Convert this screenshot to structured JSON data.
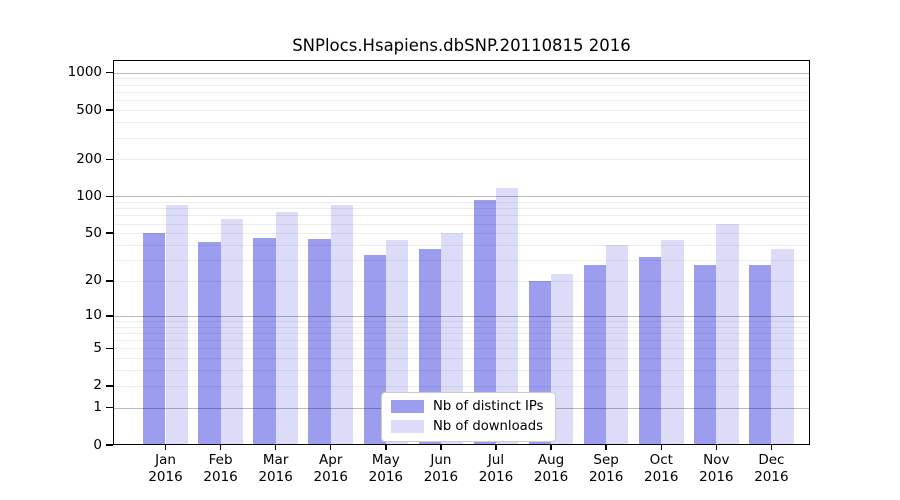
{
  "chart_data": {
    "type": "bar",
    "title": "SNPlocs.Hsapiens.dbSNP.20110815 2016",
    "categories": [
      "Jan",
      "Feb",
      "Mar",
      "Apr",
      "May",
      "Jun",
      "Jul",
      "Aug",
      "Sep",
      "Oct",
      "Nov",
      "Dec"
    ],
    "category_year": "2016",
    "series": [
      {
        "name": "Nb of distinct IPs",
        "color": "#9d9df0",
        "values": [
          50,
          42,
          46,
          45,
          33,
          37,
          94,
          20,
          27,
          32,
          27,
          27
        ]
      },
      {
        "name": "Nb of downloads",
        "color": "#dcdcf9",
        "values": [
          85,
          65,
          75,
          85,
          44,
          50,
          116,
          23,
          40,
          44,
          60,
          37
        ]
      }
    ],
    "yscale": "log1p",
    "yticks": [
      0,
      1,
      2,
      5,
      10,
      20,
      50,
      100,
      200,
      500,
      1000
    ],
    "ylim": [
      0,
      1268
    ],
    "grid": {
      "major": [
        1,
        10,
        100,
        1000
      ],
      "minor_base": [
        2,
        3,
        4,
        5,
        6,
        7,
        8,
        9
      ],
      "minor_decades": [
        1,
        10,
        100
      ]
    },
    "legend_position": "inside-bottom-center",
    "xlabel": "",
    "ylabel": ""
  }
}
